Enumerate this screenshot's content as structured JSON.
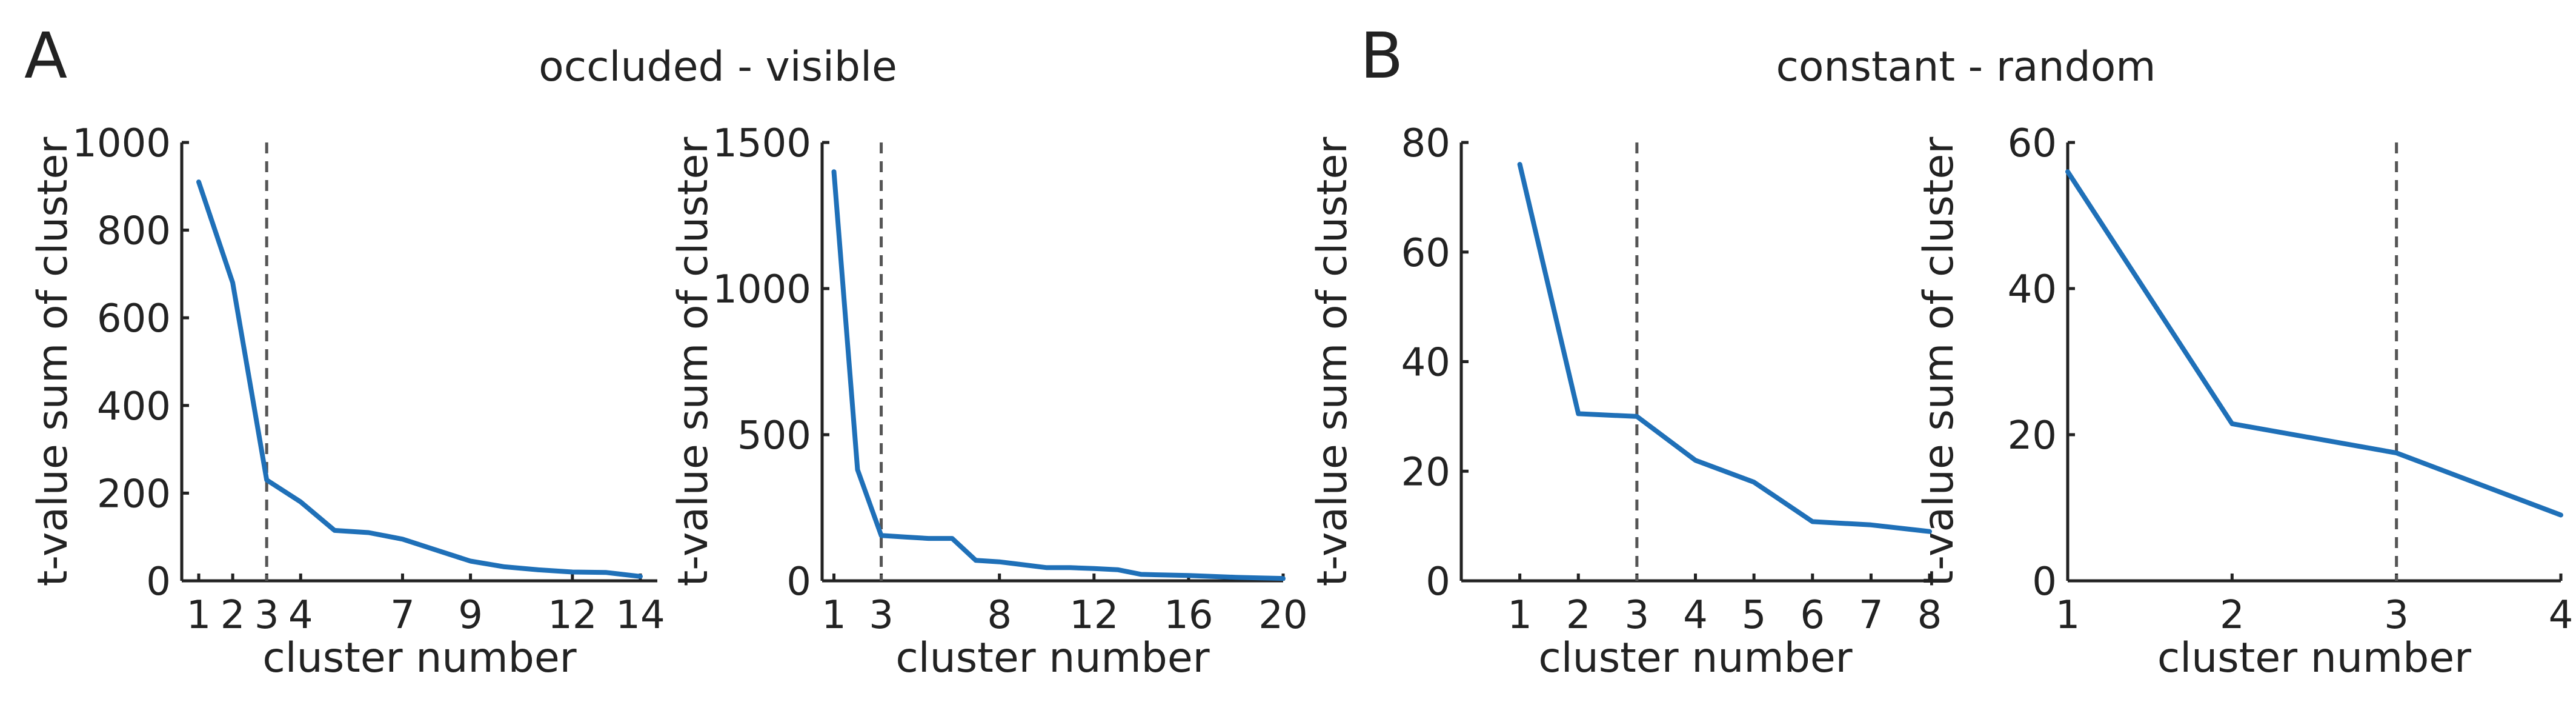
{
  "figure": {
    "panels": [
      {
        "letter": "A",
        "title": "occluded - visible"
      },
      {
        "letter": "B",
        "title": "constant - random"
      }
    ]
  },
  "colors": {
    "series": "#1f70b8",
    "cutoff": "#555555",
    "axis": "#222222"
  },
  "chart_data": [
    {
      "type": "line",
      "panel": "A",
      "xlabel": "cluster number",
      "ylabel": "t-value sum of cluster",
      "xlim": [
        0.5,
        14.5
      ],
      "ylim": [
        0,
        1000
      ],
      "xticks": [
        1,
        2,
        3,
        4,
        7,
        9,
        12,
        14
      ],
      "yticks": [
        0,
        200,
        400,
        600,
        800,
        1000
      ],
      "cutoff_x": 3,
      "x": [
        1,
        2,
        3,
        4,
        5,
        6,
        7,
        8,
        9,
        10,
        11,
        12,
        13,
        14
      ],
      "values": [
        910,
        680,
        230,
        180,
        115,
        110,
        95,
        70,
        45,
        32,
        25,
        20,
        19,
        10
      ]
    },
    {
      "type": "line",
      "panel": "A",
      "xlabel": "cluster number",
      "ylabel": "t-value sum of cluster",
      "xlim": [
        0.5,
        20
      ],
      "ylim": [
        0,
        1500
      ],
      "xticks": [
        1,
        3,
        8,
        12,
        16,
        20
      ],
      "yticks": [
        0,
        500,
        1000,
        1500
      ],
      "cutoff_x": 3,
      "x": [
        1,
        2,
        3,
        4,
        5,
        6,
        7,
        8,
        9,
        10,
        11,
        12,
        13,
        14,
        15,
        16,
        17,
        18,
        19,
        20
      ],
      "values": [
        1400,
        380,
        155,
        150,
        145,
        145,
        70,
        65,
        55,
        45,
        45,
        42,
        38,
        22,
        20,
        18,
        15,
        12,
        10,
        8
      ]
    },
    {
      "type": "line",
      "panel": "B",
      "xlabel": "cluster number",
      "ylabel": "t-value sum of cluster",
      "xlim": [
        0,
        8
      ],
      "ylim": [
        0,
        80
      ],
      "xticks": [
        1,
        2,
        3,
        4,
        5,
        6,
        7,
        8
      ],
      "yticks": [
        0,
        20,
        40,
        60,
        80
      ],
      "cutoff_x": 3,
      "x": [
        1,
        2,
        3,
        4,
        5,
        6,
        7,
        8
      ],
      "values": [
        76,
        30.5,
        30,
        22,
        18,
        10.8,
        10.2,
        9
      ]
    },
    {
      "type": "line",
      "panel": "B",
      "xlabel": "cluster number",
      "ylabel": "t-value sum of cluster",
      "xlim": [
        1,
        4
      ],
      "ylim": [
        0,
        60
      ],
      "xticks": [
        1,
        2,
        3,
        4
      ],
      "yticks": [
        0,
        20,
        40,
        60
      ],
      "cutoff_x": 3,
      "x": [
        1,
        2,
        3,
        4
      ],
      "values": [
        56,
        21.5,
        17.5,
        9
      ]
    }
  ]
}
